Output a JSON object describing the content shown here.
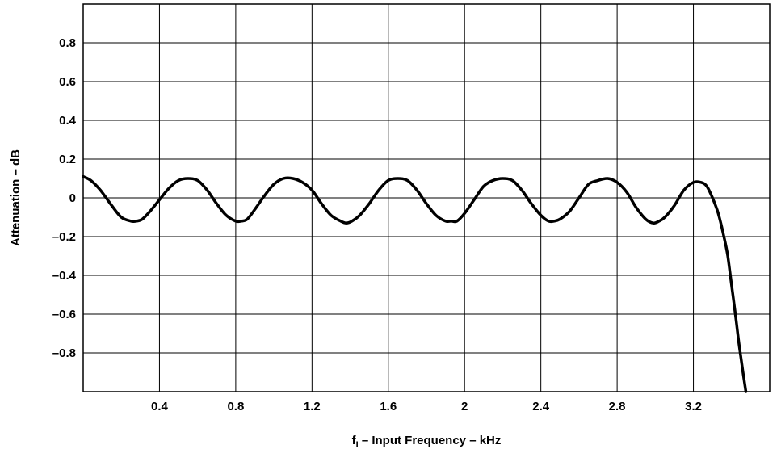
{
  "chart_data": {
    "type": "line",
    "title": "",
    "xlabel": {
      "symbol": "f",
      "subscript": "I",
      "text": " – Input Frequency – kHz"
    },
    "ylabel": "Attenuation – dB",
    "xlim": [
      0,
      3.6
    ],
    "ylim": [
      -1.0,
      1.0
    ],
    "grid": true,
    "x_ticks": [
      {
        "value": 0.4,
        "label": "0.4"
      },
      {
        "value": 0.8,
        "label": "0.8"
      },
      {
        "value": 1.2,
        "label": "1.2"
      },
      {
        "value": 1.6,
        "label": "1.6"
      },
      {
        "value": 2.0,
        "label": "2"
      },
      {
        "value": 2.4,
        "label": "2.4"
      },
      {
        "value": 2.8,
        "label": "2.8"
      },
      {
        "value": 3.2,
        "label": "3.2"
      }
    ],
    "y_ticks": [
      {
        "value": 0.8,
        "label": "0.8"
      },
      {
        "value": 0.6,
        "label": "0.6"
      },
      {
        "value": 0.4,
        "label": "0.4"
      },
      {
        "value": 0.2,
        "label": "0.2"
      },
      {
        "value": 0.0,
        "label": "0"
      },
      {
        "value": -0.2,
        "label": "–0.2"
      },
      {
        "value": -0.4,
        "label": "–0.4"
      },
      {
        "value": -0.6,
        "label": "–0.6"
      },
      {
        "value": -0.8,
        "label": "–0.8"
      }
    ],
    "series": [
      {
        "color": "#000000",
        "x": [
          0,
          0.04,
          0.09,
          0.15,
          0.2,
          0.25,
          0.28,
          0.31,
          0.35,
          0.4,
          0.45,
          0.5,
          0.55,
          0.6,
          0.65,
          0.7,
          0.75,
          0.8,
          0.83,
          0.86,
          0.9,
          0.95,
          1.0,
          1.05,
          1.1,
          1.15,
          1.2,
          1.25,
          1.3,
          1.35,
          1.38,
          1.41,
          1.45,
          1.5,
          1.55,
          1.6,
          1.65,
          1.7,
          1.75,
          1.8,
          1.85,
          1.9,
          1.93,
          1.96,
          2.0,
          2.05,
          2.1,
          2.15,
          2.2,
          2.25,
          2.3,
          2.35,
          2.4,
          2.44,
          2.47,
          2.5,
          2.55,
          2.6,
          2.65,
          2.7,
          2.75,
          2.8,
          2.85,
          2.9,
          2.95,
          2.99,
          3.02,
          3.05,
          3.1,
          3.15,
          3.2,
          3.24,
          3.27,
          3.3,
          3.33,
          3.36,
          3.38,
          3.4,
          3.42,
          3.44,
          3.46,
          3.475
        ],
        "y": [
          0.11,
          0.09,
          0.04,
          -0.04,
          -0.1,
          -0.12,
          -0.12,
          -0.11,
          -0.07,
          -0.01,
          0.05,
          0.09,
          0.1,
          0.09,
          0.04,
          -0.03,
          -0.09,
          -0.12,
          -0.12,
          -0.11,
          -0.06,
          0.01,
          0.07,
          0.1,
          0.1,
          0.08,
          0.04,
          -0.03,
          -0.09,
          -0.12,
          -0.13,
          -0.12,
          -0.09,
          -0.03,
          0.04,
          0.09,
          0.1,
          0.09,
          0.04,
          -0.03,
          -0.09,
          -0.12,
          -0.12,
          -0.12,
          -0.08,
          -0.01,
          0.06,
          0.09,
          0.1,
          0.09,
          0.04,
          -0.03,
          -0.09,
          -0.12,
          -0.12,
          -0.11,
          -0.07,
          0.0,
          0.07,
          0.09,
          0.1,
          0.08,
          0.03,
          -0.05,
          -0.11,
          -0.13,
          -0.12,
          -0.1,
          -0.04,
          0.04,
          0.08,
          0.08,
          0.06,
          0.0,
          -0.08,
          -0.2,
          -0.3,
          -0.45,
          -0.6,
          -0.76,
          -0.9,
          -1.0
        ]
      }
    ]
  }
}
